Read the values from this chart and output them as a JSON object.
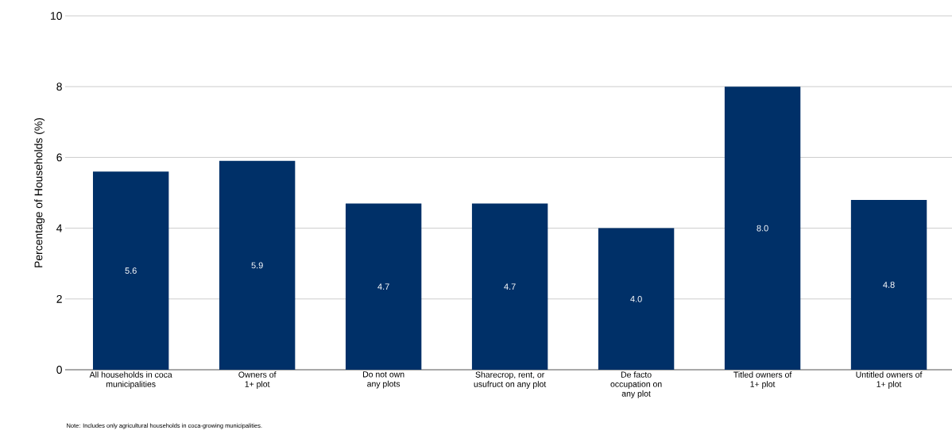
{
  "chart_data": {
    "type": "bar",
    "ylabel": "Percentage of Households (%)",
    "categories": [
      "All households in coca municipalities",
      "Owners of 1+ plot",
      "Do not own any plots",
      "Sharecrop, rent, or usufruct on any plot",
      "De facto occupation on any plot",
      "Titled owners of 1+ plot",
      "Untitled owners of 1+ plot"
    ],
    "values": [
      5.6,
      5.9,
      4.7,
      4.7,
      4.0,
      8.0,
      4.8
    ],
    "value_labels": [
      "5.6",
      "5.9",
      "4.7",
      "4.7",
      "4.0",
      "8.0",
      "4.8"
    ],
    "color": "#003068",
    "ylim": [
      0,
      10
    ],
    "yticks": [
      0,
      2,
      4,
      6,
      8,
      10
    ],
    "grid": "y",
    "annotations": [
      "Note: Includes only agricultural households in coca-growing municipalities."
    ]
  }
}
